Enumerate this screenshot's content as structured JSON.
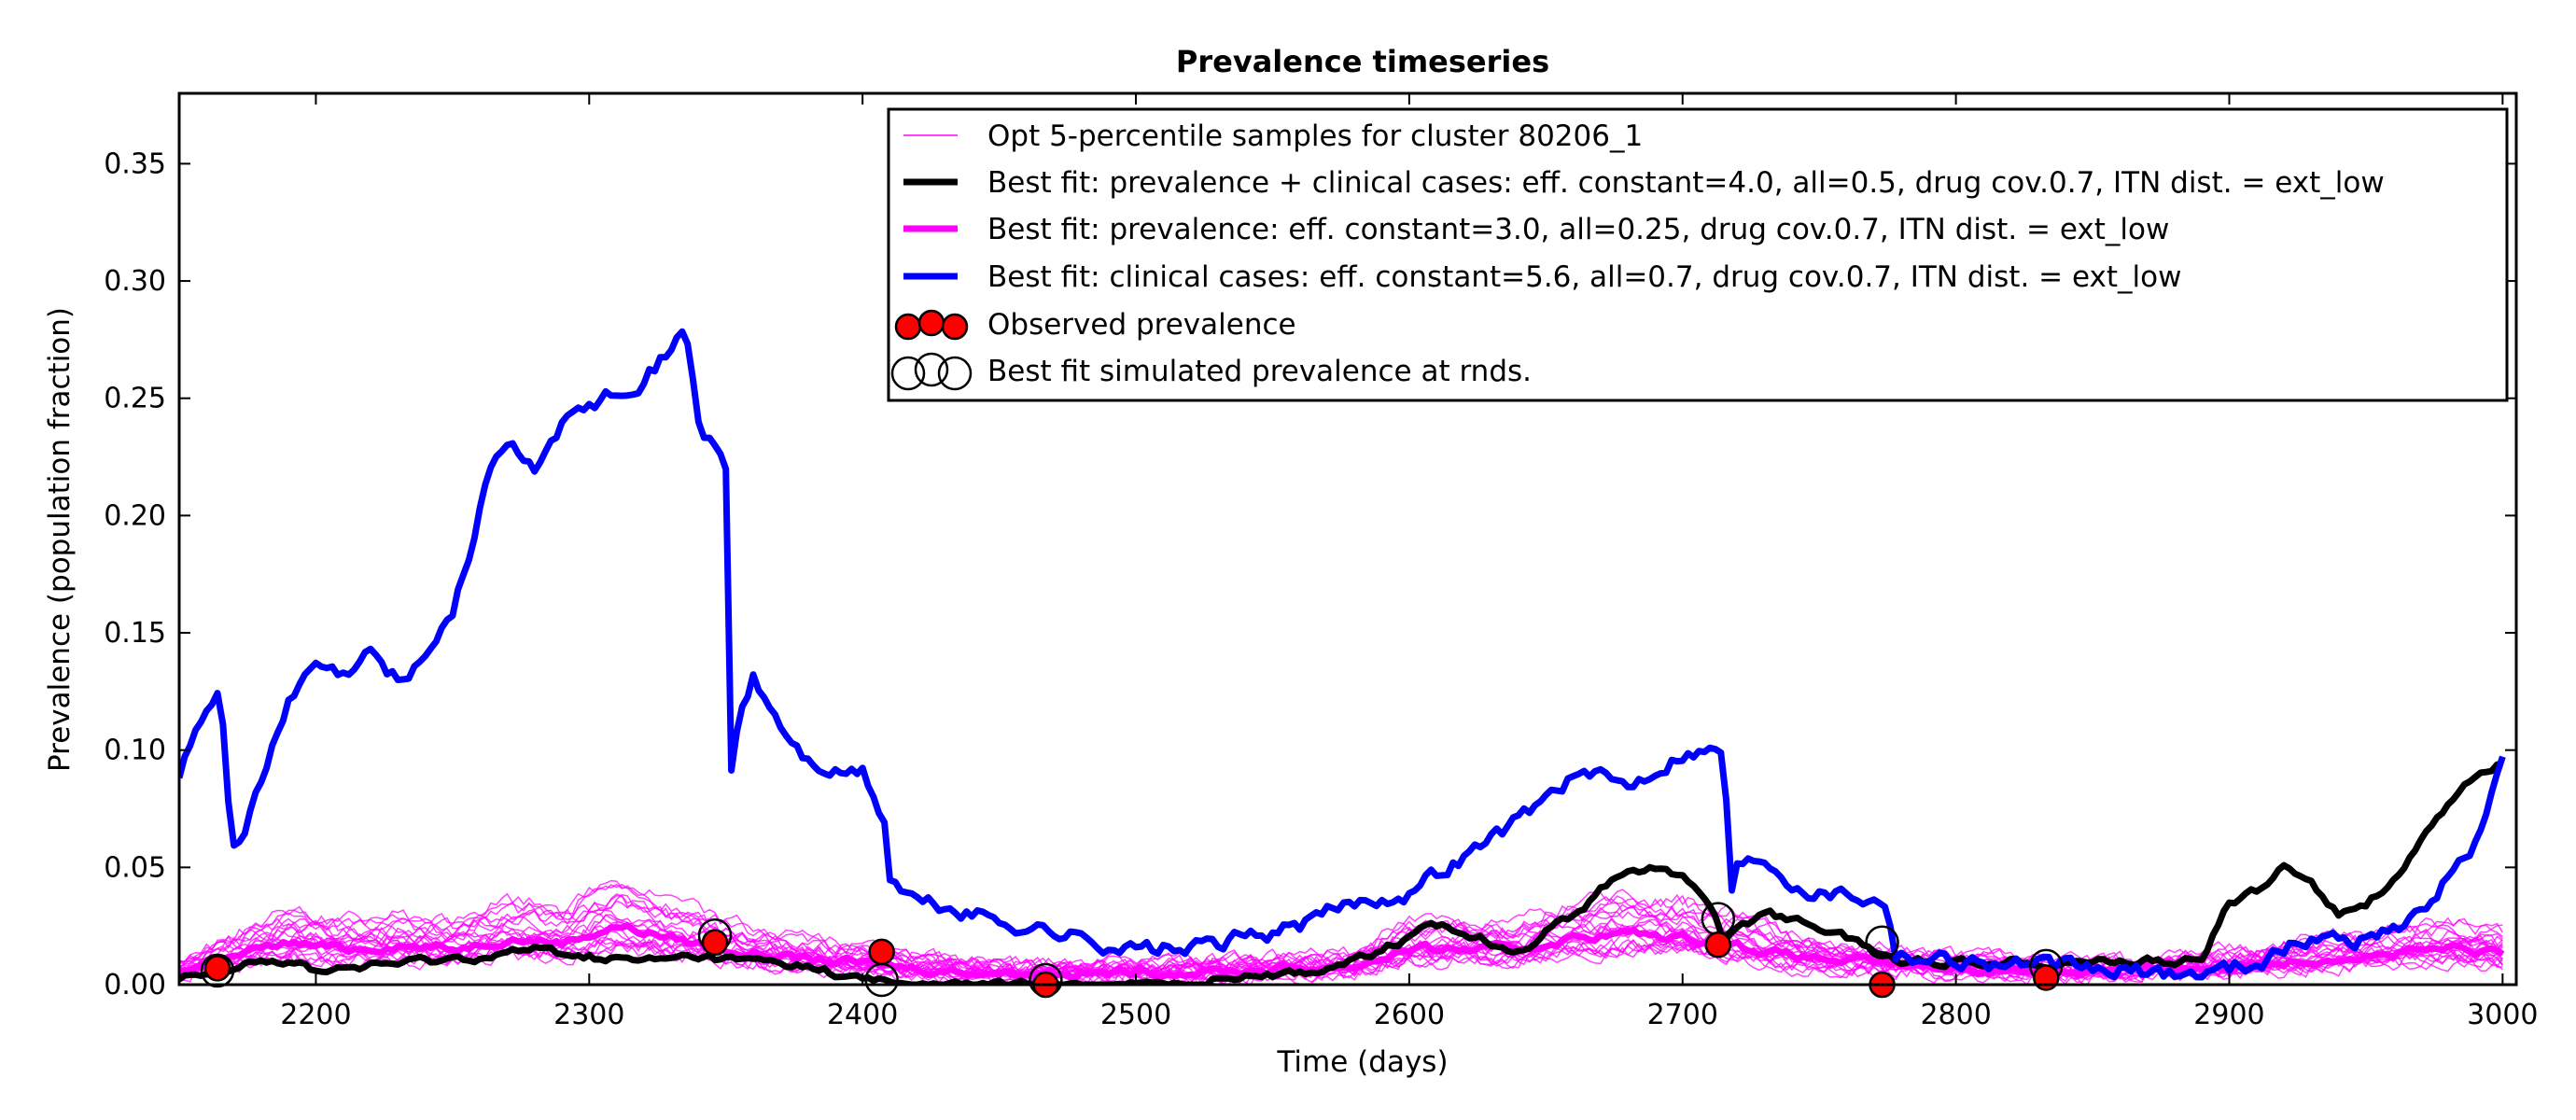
{
  "chart_data": {
    "type": "line",
    "title": "Prevalence timeseries",
    "xlabel": "Time (days)",
    "ylabel": "Prevalence (population fraction)",
    "xlim": [
      2150,
      3005
    ],
    "ylim": [
      0,
      0.38
    ],
    "xticks": [
      2200,
      2300,
      2400,
      2500,
      2600,
      2700,
      2800,
      2900,
      3000
    ],
    "yticks": [
      0.0,
      0.05,
      0.1,
      0.15,
      0.2,
      0.25,
      0.3,
      0.35
    ],
    "ytick_labels": [
      "0.00",
      "0.05",
      "0.10",
      "0.15",
      "0.20",
      "0.25",
      "0.30",
      "0.35"
    ],
    "grid": false,
    "legend_position": "top-right",
    "sample_series": {
      "name": "Opt 5-percentile samples for cluster 80206_1",
      "color": "#ff00ff",
      "count": 20
    },
    "series": [
      {
        "name": "Best fit: clinical cases: eff. constant=5.6, all=0.7, drug cov.0.7, ITN dist. = ext_low",
        "color": "#0000ff",
        "x": [
          2150,
          2157,
          2165,
          2169,
          2171,
          2180,
          2190,
          2200,
          2210,
          2220,
          2230,
          2240,
          2250,
          2258,
          2263,
          2270,
          2280,
          2290,
          2300,
          2310,
          2320,
          2330,
          2335,
          2337,
          2340,
          2345,
          2350,
          2352,
          2355,
          2360,
          2370,
          2380,
          2390,
          2400,
          2408,
          2410,
          2420,
          2440,
          2460,
          2480,
          2500,
          2520,
          2540,
          2560,
          2580,
          2600,
          2620,
          2640,
          2660,
          2680,
          2700,
          2715,
          2718,
          2720,
          2730,
          2740,
          2750,
          2760,
          2775,
          2778,
          2790,
          2810,
          2830,
          2850,
          2870,
          2890,
          2910,
          2930,
          2950,
          2970,
          2990,
          3000
        ],
        "y": [
          0.09,
          0.11,
          0.13,
          0.06,
          0.06,
          0.085,
          0.12,
          0.135,
          0.13,
          0.14,
          0.13,
          0.14,
          0.16,
          0.19,
          0.22,
          0.23,
          0.22,
          0.24,
          0.245,
          0.255,
          0.26,
          0.27,
          0.28,
          0.27,
          0.24,
          0.23,
          0.22,
          0.09,
          0.115,
          0.13,
          0.11,
          0.095,
          0.09,
          0.09,
          0.07,
          0.045,
          0.035,
          0.03,
          0.025,
          0.02,
          0.015,
          0.015,
          0.02,
          0.025,
          0.035,
          0.04,
          0.055,
          0.07,
          0.09,
          0.085,
          0.1,
          0.1,
          0.04,
          0.05,
          0.055,
          0.045,
          0.04,
          0.04,
          0.035,
          0.015,
          0.012,
          0.01,
          0.008,
          0.006,
          0.005,
          0.005,
          0.01,
          0.02,
          0.02,
          0.03,
          0.06,
          0.095
        ]
      },
      {
        "name": "Best fit: prevalence + clinical cases: eff. constant=4.0, all=0.5, drug cov.0.7, ITN dist. = ext_low",
        "color": "#000000",
        "x": [
          2150,
          2165,
          2175,
          2190,
          2200,
          2220,
          2240,
          2260,
          2280,
          2300,
          2320,
          2340,
          2360,
          2380,
          2400,
          2420,
          2440,
          2460,
          2480,
          2500,
          2520,
          2540,
          2560,
          2580,
          2600,
          2610,
          2620,
          2640,
          2660,
          2670,
          2680,
          2690,
          2700,
          2710,
          2715,
          2720,
          2730,
          2740,
          2750,
          2760,
          2775,
          2780,
          2800,
          2820,
          2840,
          2860,
          2880,
          2890,
          2900,
          2910,
          2920,
          2930,
          2940,
          2950,
          2960,
          2970,
          2980,
          2990,
          3000
        ],
        "y": [
          0.002,
          0.005,
          0.012,
          0.01,
          0.006,
          0.008,
          0.01,
          0.012,
          0.015,
          0.012,
          0.01,
          0.012,
          0.01,
          0.008,
          0.002,
          0.0,
          0.0,
          0.0,
          0.0,
          0.0,
          0.0,
          0.005,
          0.005,
          0.01,
          0.02,
          0.025,
          0.022,
          0.015,
          0.03,
          0.04,
          0.05,
          0.05,
          0.045,
          0.035,
          0.02,
          0.025,
          0.03,
          0.028,
          0.025,
          0.02,
          0.012,
          0.01,
          0.01,
          0.01,
          0.01,
          0.01,
          0.01,
          0.01,
          0.035,
          0.04,
          0.05,
          0.045,
          0.03,
          0.035,
          0.045,
          0.06,
          0.075,
          0.09,
          0.095
        ]
      },
      {
        "name": "Best fit: prevalence: eff. constant=3.0, all=0.25, drug cov.0.7, ITN dist. = ext_low",
        "color": "#ff00ff",
        "x": [
          2150,
          2170,
          2190,
          2210,
          2230,
          2250,
          2270,
          2290,
          2310,
          2330,
          2350,
          2370,
          2390,
          2410,
          2430,
          2460,
          2500,
          2540,
          2580,
          2600,
          2620,
          2640,
          2660,
          2680,
          2700,
          2720,
          2740,
          2760,
          2780,
          2800,
          2820,
          2840,
          2860,
          2880,
          2900,
          2920,
          2940,
          2960,
          2980,
          3000
        ],
        "y": [
          0.005,
          0.012,
          0.018,
          0.015,
          0.017,
          0.015,
          0.02,
          0.018,
          0.025,
          0.02,
          0.015,
          0.012,
          0.01,
          0.008,
          0.006,
          0.005,
          0.005,
          0.006,
          0.008,
          0.015,
          0.015,
          0.015,
          0.02,
          0.022,
          0.02,
          0.017,
          0.012,
          0.01,
          0.008,
          0.007,
          0.006,
          0.006,
          0.006,
          0.007,
          0.008,
          0.01,
          0.012,
          0.013,
          0.015,
          0.013
        ]
      }
    ],
    "observed_prevalence": {
      "name": "Observed prevalence",
      "color": "#ff0000",
      "x": [
        2164,
        2346,
        2407,
        2467,
        2713,
        2773,
        2833
      ],
      "y": [
        0.007,
        0.018,
        0.014,
        0.0,
        0.017,
        0.0,
        0.003
      ]
    },
    "simulated_prevalence_at_rnds": {
      "name": "Best fit simulated prevalence at rnds.",
      "x": [
        2164,
        2346,
        2407,
        2467,
        2713,
        2773,
        2833
      ],
      "y": [
        0.006,
        0.021,
        0.002,
        0.002,
        0.028,
        0.018,
        0.008
      ]
    }
  }
}
